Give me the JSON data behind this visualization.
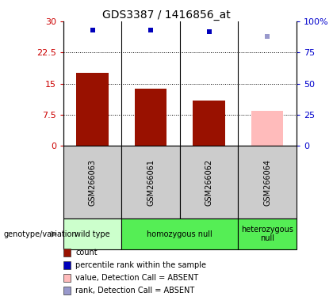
{
  "title": "GDS3387 / 1416856_at",
  "samples": [
    "GSM266063",
    "GSM266061",
    "GSM266062",
    "GSM266064"
  ],
  "bar_values": [
    17.5,
    13.8,
    11.0,
    null
  ],
  "bar_absent_values": [
    null,
    null,
    null,
    8.5
  ],
  "percentile_values": [
    93.0,
    93.0,
    91.5,
    null
  ],
  "percentile_absent_values": [
    null,
    null,
    null,
    88.0
  ],
  "bar_color": "#991100",
  "bar_absent_color": "#ffbbbb",
  "percentile_color": "#0000bb",
  "percentile_absent_color": "#9999cc",
  "ylim_left": [
    0,
    30
  ],
  "ylim_right": [
    0,
    100
  ],
  "yticks_left": [
    0,
    7.5,
    15,
    22.5,
    30
  ],
  "ytick_labels_left": [
    "0",
    "7.5",
    "15",
    "22.5",
    "30"
  ],
  "yticks_right": [
    0,
    25,
    50,
    75,
    100
  ],
  "ytick_labels_right": [
    "0",
    "25",
    "50",
    "75",
    "100%"
  ],
  "genotype_groups": [
    {
      "label": "wild type",
      "start": 0,
      "end": 1,
      "color": "#ccffcc"
    },
    {
      "label": "homozygous null",
      "start": 1,
      "end": 3,
      "color": "#55ee55"
    },
    {
      "label": "heterozygous\nnull",
      "start": 3,
      "end": 4,
      "color": "#55ee55"
    }
  ],
  "legend_items": [
    {
      "label": "count",
      "color": "#991100"
    },
    {
      "label": "percentile rank within the sample",
      "color": "#0000bb"
    },
    {
      "label": "value, Detection Call = ABSENT",
      "color": "#ffbbbb"
    },
    {
      "label": "rank, Detection Call = ABSENT",
      "color": "#9999cc"
    }
  ],
  "genotype_label": "genotype/variation",
  "bar_width": 0.55,
  "sample_label_fontsize": 7,
  "geno_fontsize": 7
}
